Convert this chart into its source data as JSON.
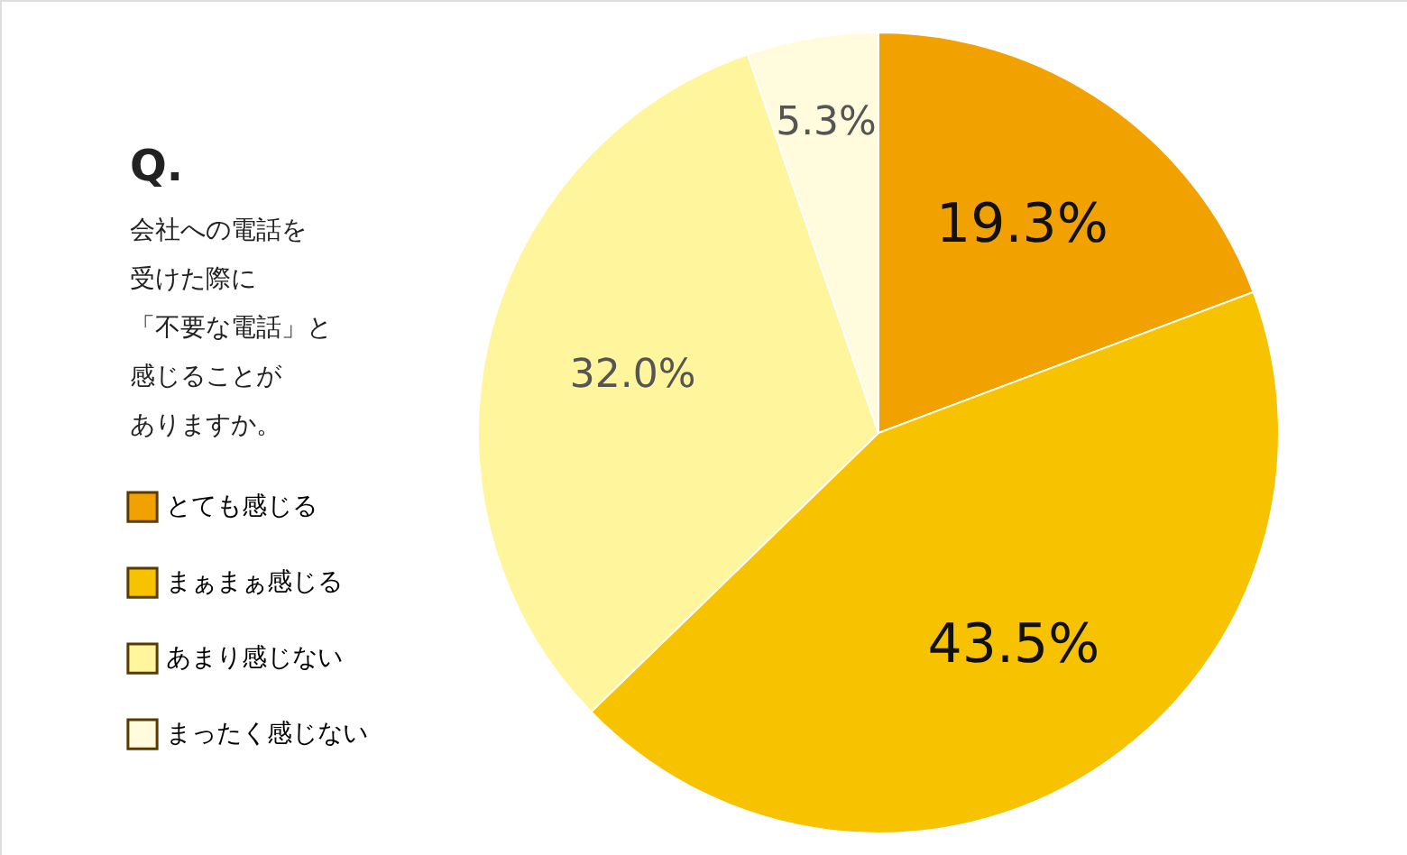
{
  "chart_data": {
    "type": "pie",
    "title": "Q.",
    "subtitle": "会社への電話を受けた際に「不要な電話」と感じることがありますか。",
    "categories": [
      "とても感じる",
      "まぁまぁ感じる",
      "あまり感じない",
      "まったく感じない"
    ],
    "values": [
      19.3,
      43.5,
      32.0,
      5.3
    ],
    "colors": [
      "#f2a200",
      "#f7c300",
      "#fff59c",
      "#fffbdc"
    ],
    "value_labels": [
      "19.3%",
      "43.5%",
      "32.0%",
      "5.3%"
    ],
    "legend": "left"
  }
}
